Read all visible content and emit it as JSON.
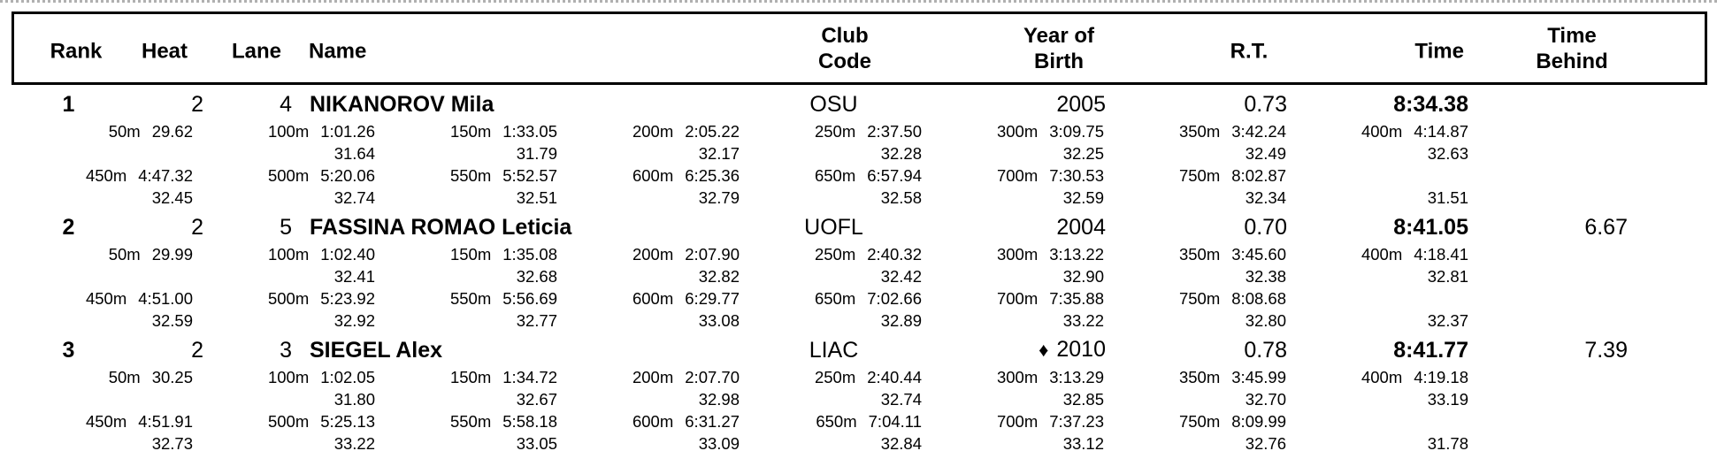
{
  "colors": {
    "background": "#ffffff",
    "text": "#000000",
    "border": "#000000",
    "top_rule": "#b0b0b0"
  },
  "header": {
    "rank": "Rank",
    "heat": "Heat",
    "lane": "Lane",
    "name": "Name",
    "club_line1": "Club",
    "club_line2": "Code",
    "yob_line1": "Year of",
    "yob_line2": "Birth",
    "rt": "R.T.",
    "time": "Time",
    "behind_line1": "Time",
    "behind_line2": "Behind"
  },
  "rows": [
    {
      "rank": "1",
      "heat": "2",
      "lane": "4",
      "name": "NIKANOROV Mila",
      "club": "OSU",
      "yob_marker": "",
      "yob": "2005",
      "rt": "0.73",
      "time": "8:34.38",
      "behind": "",
      "splits_line1": [
        {
          "d": "50m",
          "t": "29.62"
        },
        {
          "d": "100m",
          "t": "1:01.26"
        },
        {
          "d": "150m",
          "t": "1:33.05"
        },
        {
          "d": "200m",
          "t": "2:05.22"
        },
        {
          "d": "250m",
          "t": "2:37.50"
        },
        {
          "d": "300m",
          "t": "3:09.75"
        },
        {
          "d": "350m",
          "t": "3:42.24"
        },
        {
          "d": "400m",
          "t": "4:14.87"
        }
      ],
      "diffs_line1": [
        "",
        "31.64",
        "31.79",
        "32.17",
        "32.28",
        "32.25",
        "32.49",
        "32.63"
      ],
      "splits_line2": [
        {
          "d": "450m",
          "t": "4:47.32"
        },
        {
          "d": "500m",
          "t": "5:20.06"
        },
        {
          "d": "550m",
          "t": "5:52.57"
        },
        {
          "d": "600m",
          "t": "6:25.36"
        },
        {
          "d": "650m",
          "t": "6:57.94"
        },
        {
          "d": "700m",
          "t": "7:30.53"
        },
        {
          "d": "750m",
          "t": "8:02.87"
        },
        {
          "d": "",
          "t": ""
        }
      ],
      "diffs_line2": [
        "32.45",
        "32.74",
        "32.51",
        "32.79",
        "32.58",
        "32.59",
        "32.34",
        "31.51"
      ]
    },
    {
      "rank": "2",
      "heat": "2",
      "lane": "5",
      "name": "FASSINA ROMAO Leticia",
      "club": "UOFL",
      "yob_marker": "",
      "yob": "2004",
      "rt": "0.70",
      "time": "8:41.05",
      "behind": "6.67",
      "splits_line1": [
        {
          "d": "50m",
          "t": "29.99"
        },
        {
          "d": "100m",
          "t": "1:02.40"
        },
        {
          "d": "150m",
          "t": "1:35.08"
        },
        {
          "d": "200m",
          "t": "2:07.90"
        },
        {
          "d": "250m",
          "t": "2:40.32"
        },
        {
          "d": "300m",
          "t": "3:13.22"
        },
        {
          "d": "350m",
          "t": "3:45.60"
        },
        {
          "d": "400m",
          "t": "4:18.41"
        }
      ],
      "diffs_line1": [
        "",
        "32.41",
        "32.68",
        "32.82",
        "32.42",
        "32.90",
        "32.38",
        "32.81"
      ],
      "splits_line2": [
        {
          "d": "450m",
          "t": "4:51.00"
        },
        {
          "d": "500m",
          "t": "5:23.92"
        },
        {
          "d": "550m",
          "t": "5:56.69"
        },
        {
          "d": "600m",
          "t": "6:29.77"
        },
        {
          "d": "650m",
          "t": "7:02.66"
        },
        {
          "d": "700m",
          "t": "7:35.88"
        },
        {
          "d": "750m",
          "t": "8:08.68"
        },
        {
          "d": "",
          "t": ""
        }
      ],
      "diffs_line2": [
        "32.59",
        "32.92",
        "32.77",
        "33.08",
        "32.89",
        "33.22",
        "32.80",
        "32.37"
      ]
    },
    {
      "rank": "3",
      "heat": "2",
      "lane": "3",
      "name": "SIEGEL Alex",
      "club": "LIAC",
      "yob_marker": "♦",
      "yob": "2010",
      "rt": "0.78",
      "time": "8:41.77",
      "behind": "7.39",
      "splits_line1": [
        {
          "d": "50m",
          "t": "30.25"
        },
        {
          "d": "100m",
          "t": "1:02.05"
        },
        {
          "d": "150m",
          "t": "1:34.72"
        },
        {
          "d": "200m",
          "t": "2:07.70"
        },
        {
          "d": "250m",
          "t": "2:40.44"
        },
        {
          "d": "300m",
          "t": "3:13.29"
        },
        {
          "d": "350m",
          "t": "3:45.99"
        },
        {
          "d": "400m",
          "t": "4:19.18"
        }
      ],
      "diffs_line1": [
        "",
        "31.80",
        "32.67",
        "32.98",
        "32.74",
        "32.85",
        "32.70",
        "33.19"
      ],
      "splits_line2": [
        {
          "d": "450m",
          "t": "4:51.91"
        },
        {
          "d": "500m",
          "t": "5:25.13"
        },
        {
          "d": "550m",
          "t": "5:58.18"
        },
        {
          "d": "600m",
          "t": "6:31.27"
        },
        {
          "d": "650m",
          "t": "7:04.11"
        },
        {
          "d": "700m",
          "t": "7:37.23"
        },
        {
          "d": "750m",
          "t": "8:09.99"
        },
        {
          "d": "",
          "t": ""
        }
      ],
      "diffs_line2": [
        "32.73",
        "33.22",
        "33.05",
        "33.09",
        "32.84",
        "33.12",
        "32.76",
        "31.78"
      ]
    }
  ]
}
